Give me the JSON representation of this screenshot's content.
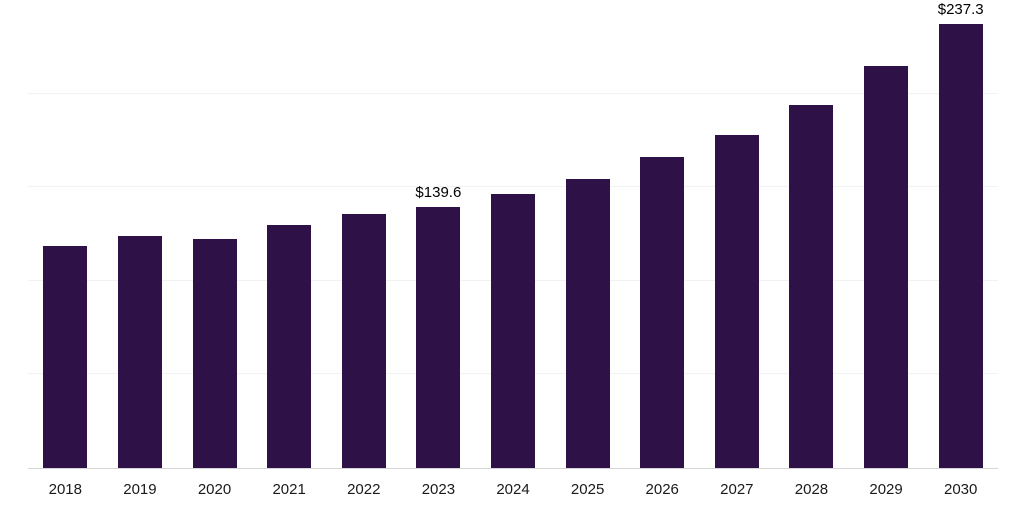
{
  "chart_data": {
    "type": "bar",
    "title": "",
    "xlabel": "",
    "ylabel": "",
    "categories": [
      "2018",
      "2019",
      "2020",
      "2021",
      "2022",
      "2023",
      "2024",
      "2025",
      "2026",
      "2027",
      "2028",
      "2029",
      "2030"
    ],
    "values": [
      118.5,
      124.0,
      122.5,
      130.0,
      135.5,
      139.6,
      146.5,
      154.5,
      166.0,
      178.0,
      194.0,
      214.5,
      237.3
    ],
    "data_labels": [
      "",
      "",
      "",
      "",
      "",
      "$139.6",
      "",
      "",
      "",
      "",
      "",
      "",
      "$237.3"
    ],
    "ylim": [
      0,
      250
    ],
    "grid": true,
    "grid_interval": 50,
    "y_tick_labels_visible": false,
    "legend": "none",
    "bar_color": "#2d1147",
    "grid_color": "#f2f2f5",
    "axis_line_color": "#d6d6d6",
    "value_label_color": "#000000",
    "x_label_color": "#1a1a1a"
  }
}
